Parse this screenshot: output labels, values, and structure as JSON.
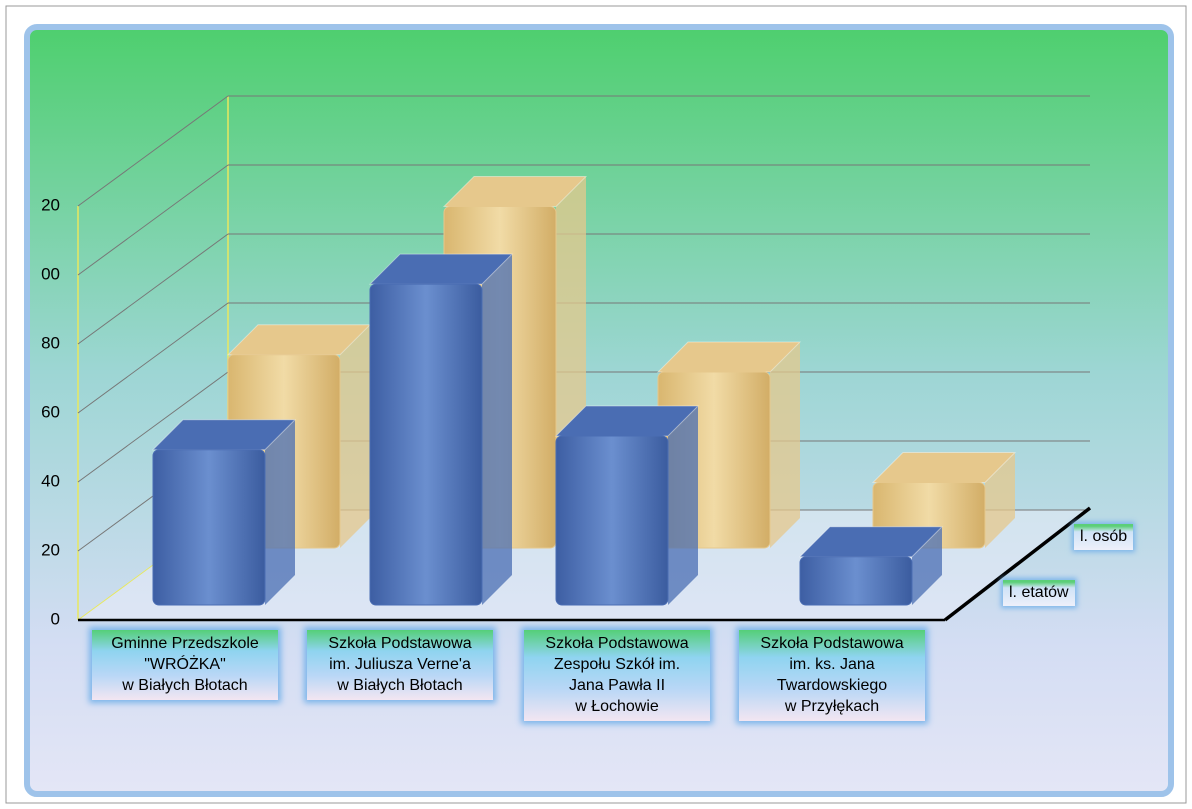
{
  "chart_data": {
    "type": "bar3d",
    "categories": [
      "Gminne Przedszkole\n\"WRÓŻKA\"\nw Białych Błotach",
      "Szkoła Podstawowa\nim. Juliusza Verne'a\nw Białych Błotach",
      "Szkoła Podstawowa\nZespołu Szkół im.\nJana Pawła II\nw Łochowie",
      "Szkoła Podstawowa\nim. ks. Jana\nTwardowskiego\nw Przyłękach"
    ],
    "series": [
      {
        "name": "l. etatów",
        "color": "#4a6db3",
        "values": [
          45,
          93,
          49,
          14
        ]
      },
      {
        "name": "l. osób",
        "color": "#e6c88c",
        "values": [
          56,
          99,
          51,
          19
        ]
      }
    ],
    "ylim": [
      0,
      120
    ],
    "yticks": [
      0,
      20,
      40,
      60,
      80,
      {
        "value": 100,
        "label": "00"
      },
      {
        "value": 120,
        "label": "20"
      }
    ],
    "grid": true
  }
}
